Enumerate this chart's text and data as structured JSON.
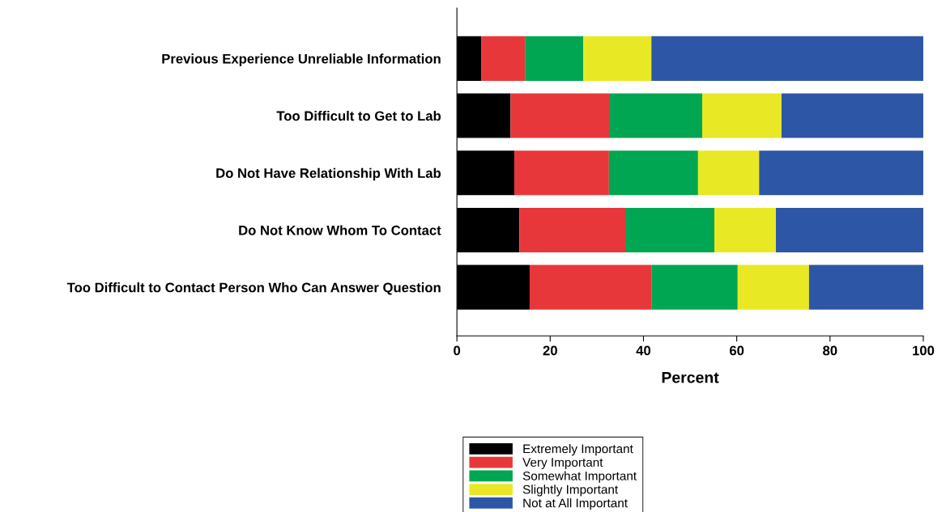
{
  "chart_data": {
    "type": "bar",
    "orientation": "horizontal",
    "stacked": true,
    "xlabel": "Percent",
    "categories": [
      "Previous Experience Unreliable Information",
      "Too Difficult to Get to Lab",
      "Do Not Have Relationship With Lab",
      "Do Not Know Whom To Contact",
      "Too Difficult to Contact Person Who Can Answer Question"
    ],
    "series": [
      {
        "name": "Extremely Important",
        "color": "#000000",
        "values": [
          5.2,
          11.5,
          12.3,
          13.4,
          15.6
        ]
      },
      {
        "name": "Very Important",
        "color": "#e8373a",
        "values": [
          9.4,
          21.3,
          20.3,
          22.7,
          26.1
        ]
      },
      {
        "name": "Somewhat Important",
        "color": "#00a651",
        "values": [
          12.5,
          19.8,
          19.1,
          19.1,
          18.5
        ]
      },
      {
        "name": "Slightly Important",
        "color": "#e8e825",
        "values": [
          14.6,
          17.0,
          13.1,
          13.2,
          15.3
        ]
      },
      {
        "name": "Not at All Important",
        "color": "#2e56a6",
        "values": [
          58.3,
          30.4,
          35.2,
          31.6,
          24.5
        ]
      }
    ],
    "xlim": [
      0,
      100
    ],
    "xticks": [
      0,
      20,
      40,
      60,
      80,
      100
    ],
    "grid": false,
    "legend": "bottom"
  }
}
